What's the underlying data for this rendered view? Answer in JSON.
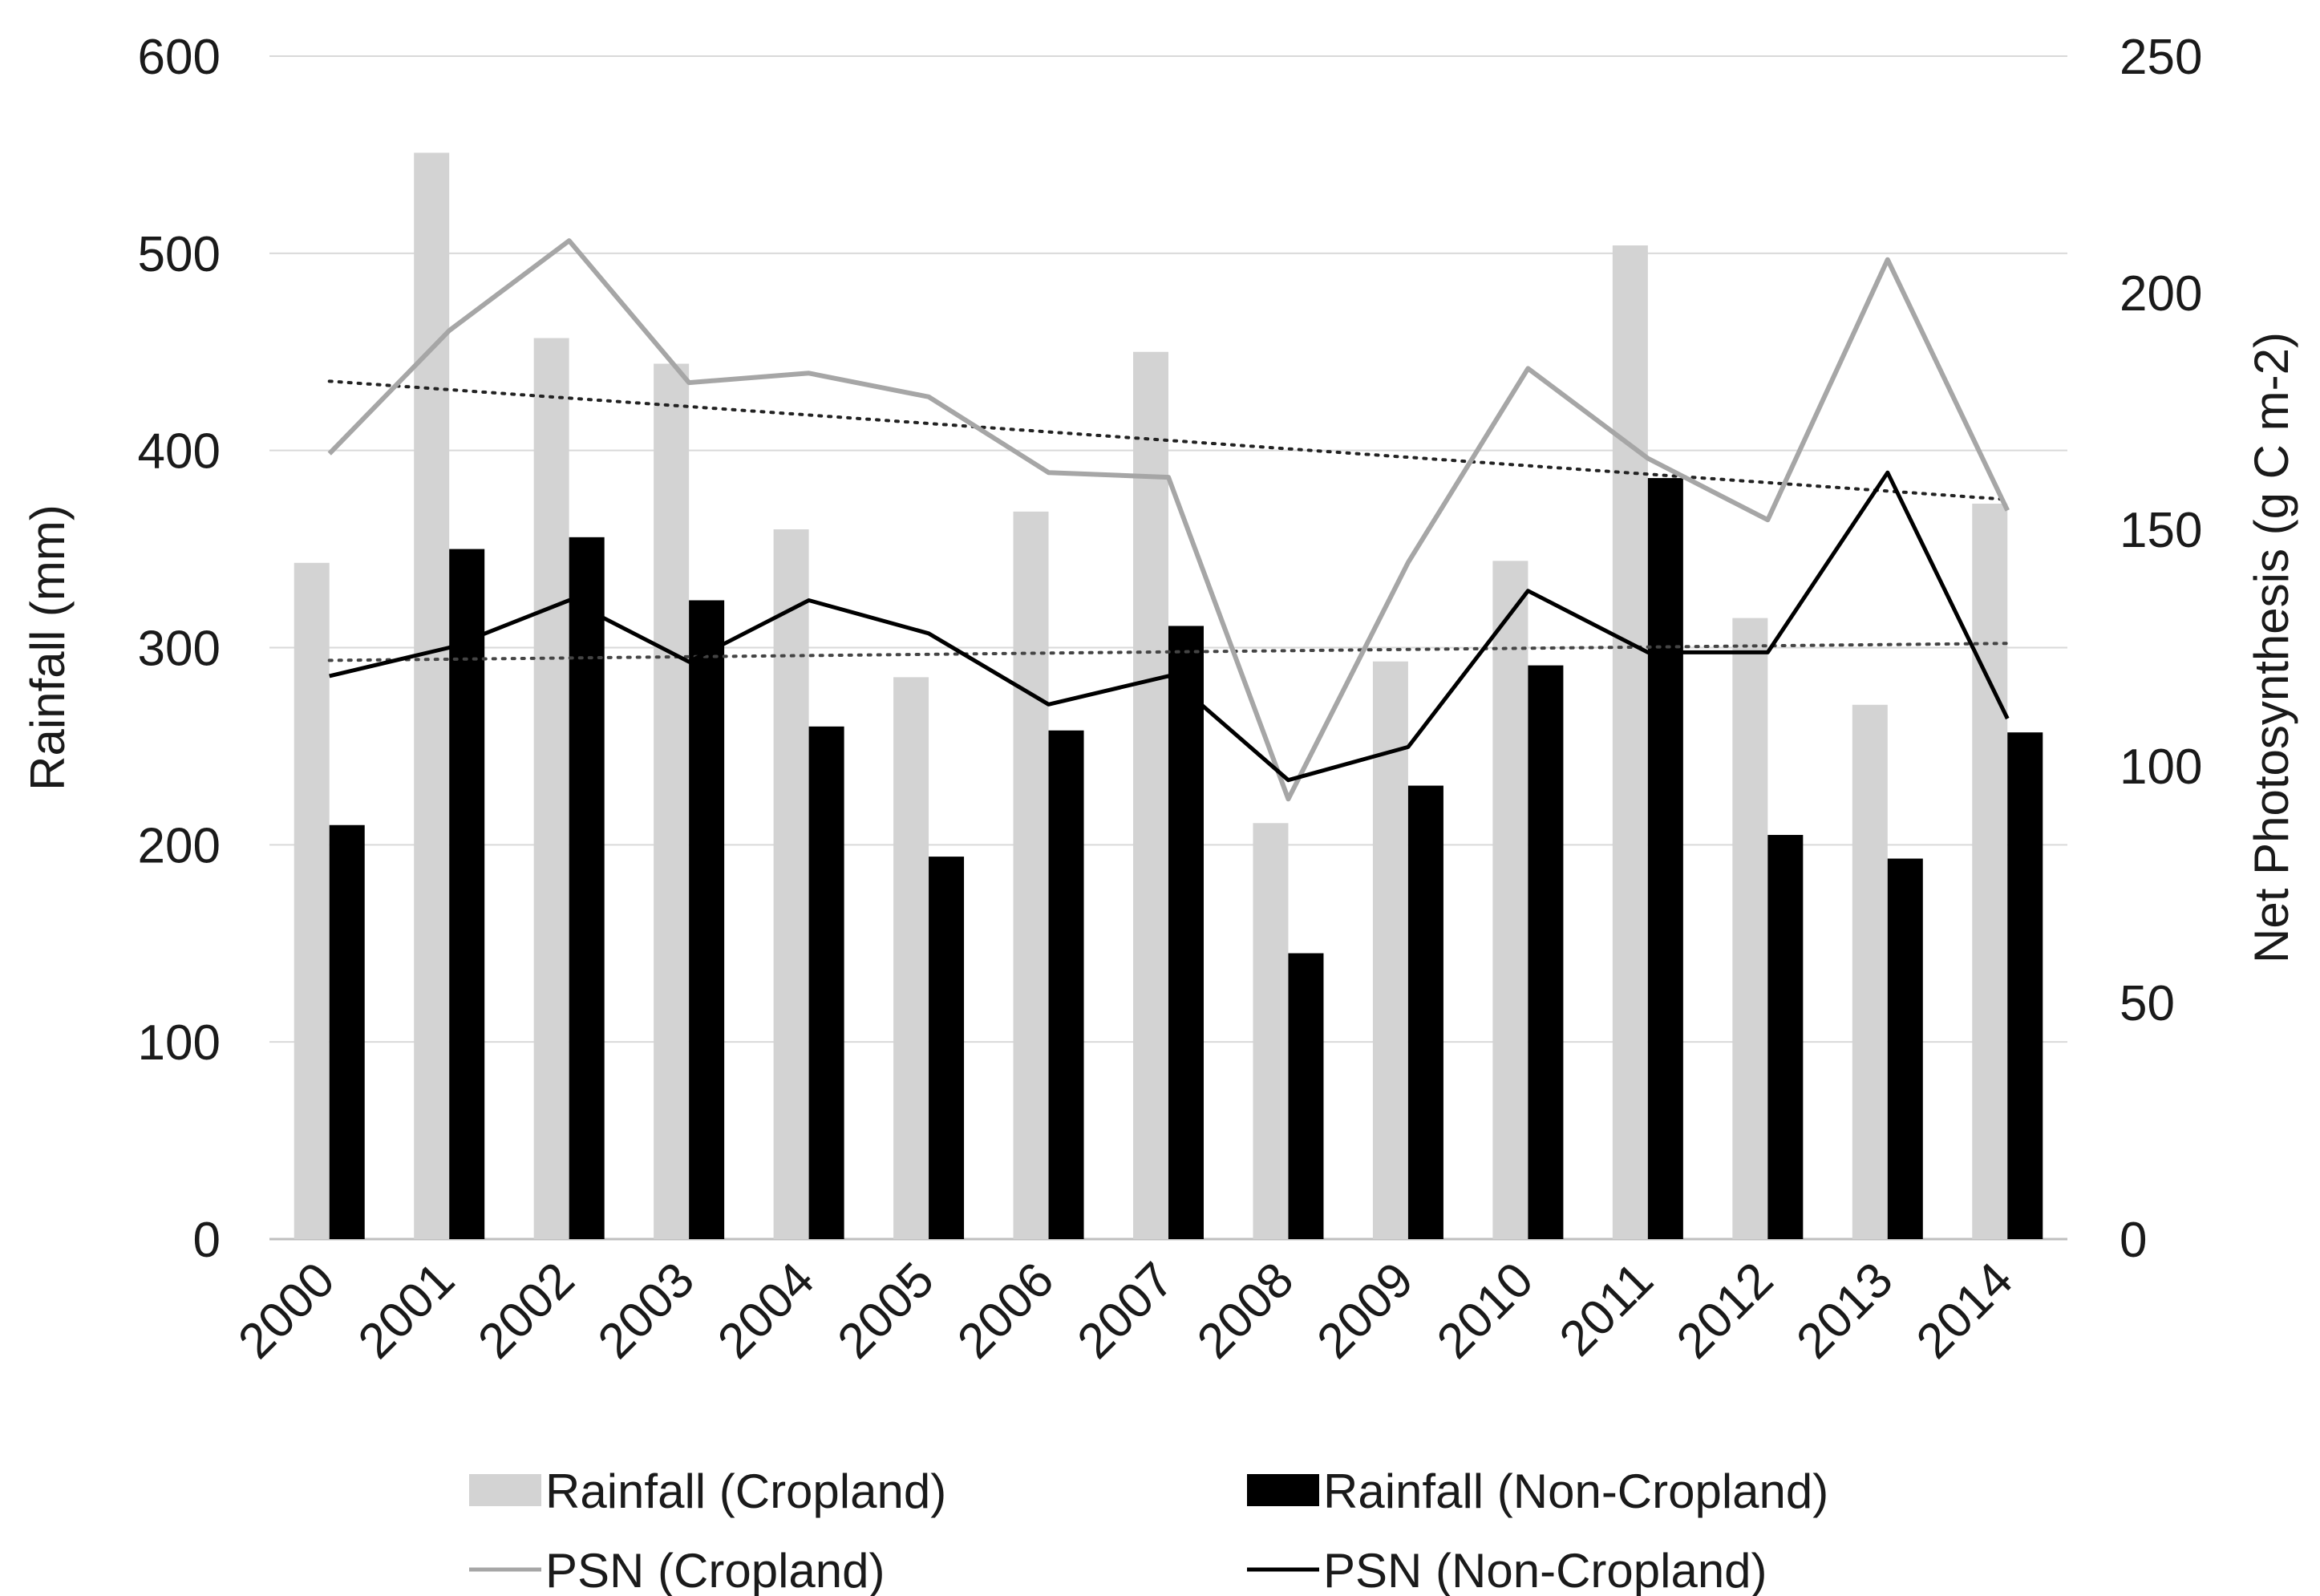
{
  "chart_data": {
    "type": "bar",
    "title": "",
    "categories": [
      "2000",
      "2001",
      "2002",
      "2003",
      "2004",
      "2005",
      "2006",
      "2007",
      "2008",
      "2009",
      "2010",
      "2011",
      "2012",
      "2013",
      "2014"
    ],
    "series": [
      {
        "name": "Rainfall (Cropland)",
        "kind": "bar",
        "axis": "left",
        "color": "#d3d3d3",
        "values": [
          343,
          551,
          457,
          444,
          360,
          285,
          369,
          450,
          211,
          293,
          344,
          504,
          315,
          271,
          373
        ]
      },
      {
        "name": "Rainfall (Non-Cropland)",
        "kind": "bar",
        "axis": "left",
        "color": "#000000",
        "values": [
          210,
          350,
          356,
          324,
          260,
          194,
          258,
          311,
          145,
          230,
          291,
          386,
          205,
          193,
          257
        ]
      },
      {
        "name": "PSN (Cropland)",
        "kind": "line",
        "axis": "right",
        "color": "#a6a6a6",
        "values": [
          166,
          192,
          211,
          181,
          183,
          178,
          162,
          161,
          93,
          143,
          184,
          165,
          152,
          207,
          154
        ]
      },
      {
        "name": "PSN (Non-Cropland)",
        "kind": "line",
        "axis": "right",
        "color": "#000000",
        "values": [
          119,
          125,
          135,
          122,
          135,
          128,
          113,
          119,
          97,
          104,
          137,
          124,
          124,
          162,
          110
        ]
      }
    ],
    "trendlines": [
      {
        "series": "PSN (Cropland)",
        "axis": "right",
        "style": "dotted",
        "color": "#222222",
        "start": 181.3,
        "end": 156.3
      },
      {
        "series": "PSN (Non-Cropland)",
        "axis": "right",
        "style": "dotted",
        "color": "#444444",
        "start": 122.3,
        "end": 125.9
      }
    ],
    "xlabel": "",
    "ylabel": "Rainfall (mm)",
    "y2label": "Net Photosynthesis (g C m-2)",
    "ylim": [
      0,
      600
    ],
    "y2lim": [
      0,
      250
    ],
    "yticks": [
      "0",
      "100",
      "200",
      "300",
      "400",
      "500",
      "600"
    ],
    "y2ticks": [
      "0",
      "50",
      "100",
      "150",
      "200",
      "250"
    ],
    "grid": true,
    "legend_position": "bottom"
  }
}
